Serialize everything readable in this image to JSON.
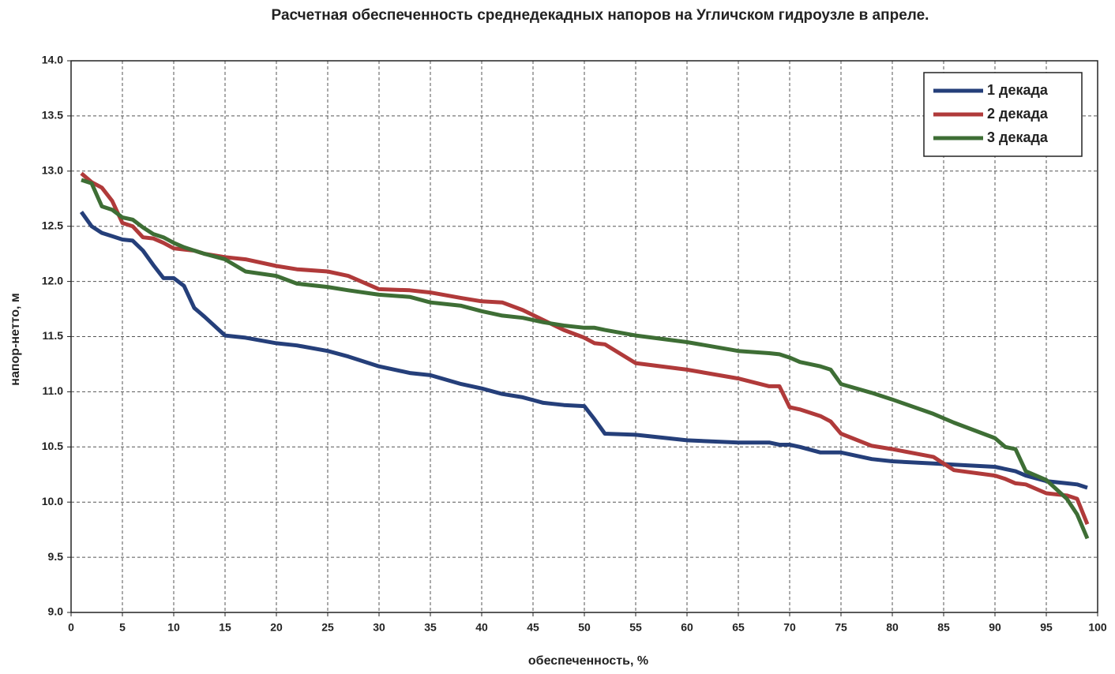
{
  "chart_data": {
    "type": "line",
    "title": "Расчетная обеспеченность среднедекадных напоров на Угличском гидроузле в апреле.",
    "x_label": "обеспеченность,  %",
    "y_label": "напор-нетто, м",
    "x": [
      1,
      2,
      3,
      4,
      5,
      6,
      7,
      8,
      9,
      10,
      11,
      12,
      13,
      15,
      17,
      20,
      22,
      25,
      27,
      30,
      33,
      35,
      38,
      40,
      42,
      44,
      46,
      48,
      50,
      51,
      52,
      55,
      60,
      65,
      68,
      69,
      70,
      71,
      73,
      74,
      75,
      78,
      80,
      84,
      86,
      90,
      91,
      92,
      93,
      95,
      97,
      98,
      99
    ],
    "series": [
      {
        "name": "1 декада",
        "color": "#253f7a",
        "values": [
          12.63,
          12.5,
          12.44,
          12.41,
          12.38,
          12.37,
          12.28,
          12.15,
          12.03,
          12.03,
          11.96,
          11.76,
          11.68,
          11.51,
          11.49,
          11.44,
          11.42,
          11.37,
          11.32,
          11.23,
          11.17,
          11.15,
          11.07,
          11.03,
          10.98,
          10.95,
          10.9,
          10.88,
          10.87,
          10.75,
          10.62,
          10.61,
          10.56,
          10.54,
          10.54,
          10.52,
          10.52,
          10.5,
          10.45,
          10.45,
          10.45,
          10.39,
          10.37,
          10.35,
          10.34,
          10.32,
          10.3,
          10.28,
          10.24,
          10.19,
          10.17,
          10.16,
          10.13
        ]
      },
      {
        "name": "2 декада",
        "color": "#b03a3a",
        "values": [
          12.98,
          12.9,
          12.85,
          12.73,
          12.53,
          12.5,
          12.4,
          12.39,
          12.35,
          12.3,
          12.29,
          12.28,
          12.25,
          12.22,
          12.2,
          12.14,
          12.11,
          12.09,
          12.05,
          11.93,
          11.92,
          11.9,
          11.85,
          11.82,
          11.81,
          11.74,
          11.65,
          11.56,
          11.49,
          11.44,
          11.43,
          11.26,
          11.2,
          11.12,
          11.05,
          11.05,
          10.86,
          10.84,
          10.78,
          10.73,
          10.62,
          10.51,
          10.48,
          10.41,
          10.29,
          10.24,
          10.21,
          10.17,
          10.16,
          10.08,
          10.06,
          10.03,
          9.8
        ]
      },
      {
        "name": "3 декада",
        "color": "#3e6e35",
        "values": [
          12.92,
          12.89,
          12.68,
          12.65,
          12.58,
          12.56,
          12.49,
          12.43,
          12.4,
          12.35,
          12.31,
          12.28,
          12.25,
          12.2,
          12.09,
          12.05,
          11.98,
          11.95,
          11.92,
          11.88,
          11.86,
          11.81,
          11.78,
          11.73,
          11.69,
          11.67,
          11.63,
          11.6,
          11.58,
          11.58,
          11.56,
          11.51,
          11.45,
          11.37,
          11.35,
          11.34,
          11.31,
          11.27,
          11.23,
          11.2,
          11.07,
          10.99,
          10.93,
          10.8,
          10.72,
          10.58,
          10.5,
          10.48,
          10.28,
          10.2,
          10.03,
          9.89,
          9.67
        ]
      }
    ],
    "xlim": [
      0,
      100
    ],
    "xticks": [
      0,
      5,
      10,
      15,
      20,
      25,
      30,
      35,
      40,
      45,
      50,
      55,
      60,
      65,
      70,
      75,
      80,
      85,
      90,
      95,
      100
    ],
    "ylim": [
      9,
      14
    ],
    "yticks": [
      {
        "value": 9,
        "label": "9.0"
      },
      9.5,
      {
        "value": 10,
        "label": "10.0"
      },
      10.5,
      {
        "value": 11,
        "label": "11.0"
      },
      11.5,
      {
        "value": 12,
        "label": "12.0"
      },
      12.5,
      {
        "value": 13,
        "label": "13.0"
      },
      13.5,
      {
        "value": 14,
        "label": "14.0"
      }
    ],
    "grid": true,
    "legend": "top-right"
  }
}
